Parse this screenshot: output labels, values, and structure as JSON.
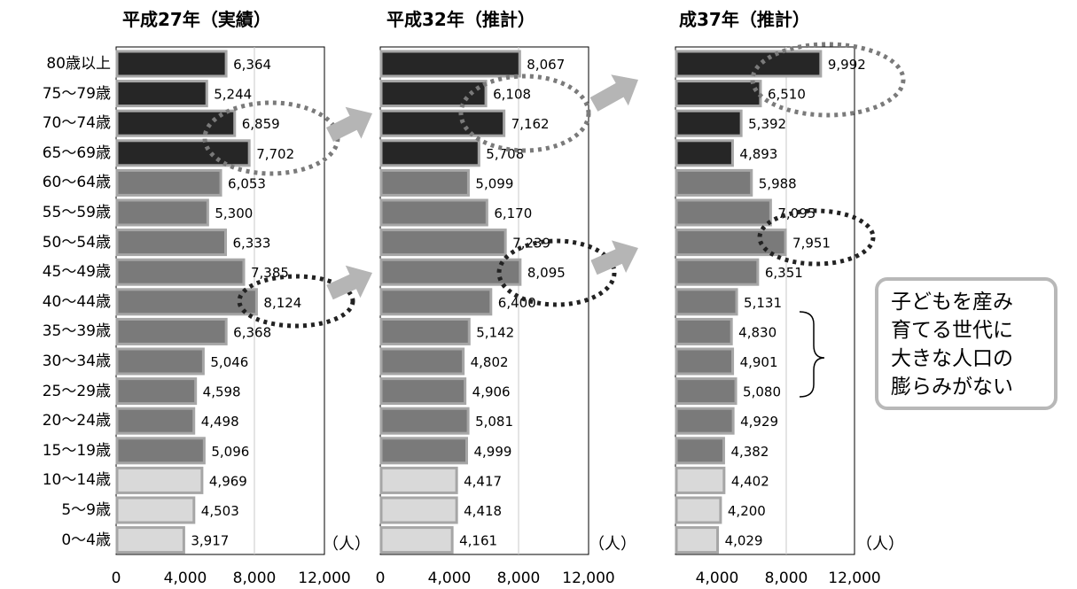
{
  "chart_data": [
    {
      "type": "bar",
      "title": "平成27年（実績）",
      "categories": [
        "80歳以上",
        "75〜79歳",
        "70〜74歳",
        "65〜69歳",
        "60〜64歳",
        "55〜59歳",
        "50〜54歳",
        "45〜49歳",
        "40〜44歳",
        "35〜39歳",
        "30〜34歳",
        "25〜29歳",
        "20〜24歳",
        "15〜19歳",
        "10〜14歳",
        "5〜9歳",
        "0〜4歳"
      ],
      "values": [
        6364,
        5244,
        6859,
        7702,
        6053,
        5300,
        6333,
        7385,
        8124,
        6368,
        5046,
        4598,
        4498,
        5096,
        4969,
        4503,
        3917
      ],
      "value_labels": [
        "6,364",
        "5,244",
        "6,859",
        "7,702",
        "6,053",
        "5,300",
        "6,333",
        "7,385",
        "8,124",
        "6,368",
        "5,046",
        "4,598",
        "4,498",
        "5,096",
        "4,969",
        "4,503",
        "3,917"
      ],
      "xlim": [
        0,
        12000
      ],
      "x_ticks": [
        "0",
        "4,000",
        "8,000",
        "12,000"
      ],
      "unit": "（人）"
    },
    {
      "type": "bar",
      "title": "平成32年（推計）",
      "categories": [
        "80歳以上",
        "75〜79歳",
        "70〜74歳",
        "65〜69歳",
        "60〜64歳",
        "55〜59歳",
        "50〜54歳",
        "45〜49歳",
        "40〜44歳",
        "35〜39歳",
        "30〜34歳",
        "25〜29歳",
        "20〜24歳",
        "15〜19歳",
        "10〜14歳",
        "5〜9歳",
        "0〜4歳"
      ],
      "values": [
        8067,
        6108,
        7162,
        5708,
        5099,
        6170,
        7239,
        8095,
        6400,
        5142,
        4802,
        4906,
        5081,
        4999,
        4417,
        4418,
        4161
      ],
      "value_labels": [
        "8,067",
        "6,108",
        "7,162",
        "5,708",
        "5,099",
        "6,170",
        "7,239",
        "8,095",
        "6,400",
        "5,142",
        "4,802",
        "4,906",
        "5,081",
        "4,999",
        "4,417",
        "4,418",
        "4,161"
      ],
      "xlim": [
        0,
        12000
      ],
      "x_ticks": [
        "0",
        "4,000",
        "8,000",
        "12,000"
      ],
      "unit": "（人）"
    },
    {
      "type": "bar",
      "title": "成37年（推計）",
      "categories": [
        "80歳以上",
        "75〜79歳",
        "70〜74歳",
        "65〜69歳",
        "60〜64歳",
        "55〜59歳",
        "50〜54歳",
        "45〜49歳",
        "40〜44歳",
        "35〜39歳",
        "30〜34歳",
        "25〜29歳",
        "20〜24歳",
        "15〜19歳",
        "10〜14歳",
        "5〜9歳",
        "0〜4歳"
      ],
      "values": [
        9992,
        6510,
        5392,
        4893,
        5988,
        7095,
        7951,
        6351,
        5131,
        4830,
        4901,
        5080,
        4929,
        4382,
        4402,
        4200,
        4029
      ],
      "value_labels": [
        "9,992",
        "6,510",
        "5,392",
        "4,893",
        "5,988",
        "7,095",
        "7,951",
        "6,351",
        "5,131",
        "4,830",
        "4,901",
        "5,080",
        "4,929",
        "4,382",
        "4,402",
        "4,200",
        "4,029"
      ],
      "xlim": [
        0,
        12000
      ],
      "x_ticks": [
        "4,000",
        "8,000",
        "12,000"
      ],
      "unit": "（人）"
    }
  ],
  "colors": {
    "elderly": "#262626",
    "working": "#7a7a7a",
    "child": "#d9d9d9",
    "bar_outline": "#a6a6a6",
    "arrow": "#b5b5b5",
    "ellipse": "#555555"
  },
  "callout": {
    "lines": [
      "子どもを産み",
      "育てる世代に",
      "大きな人口の",
      "膨らみがない"
    ]
  }
}
